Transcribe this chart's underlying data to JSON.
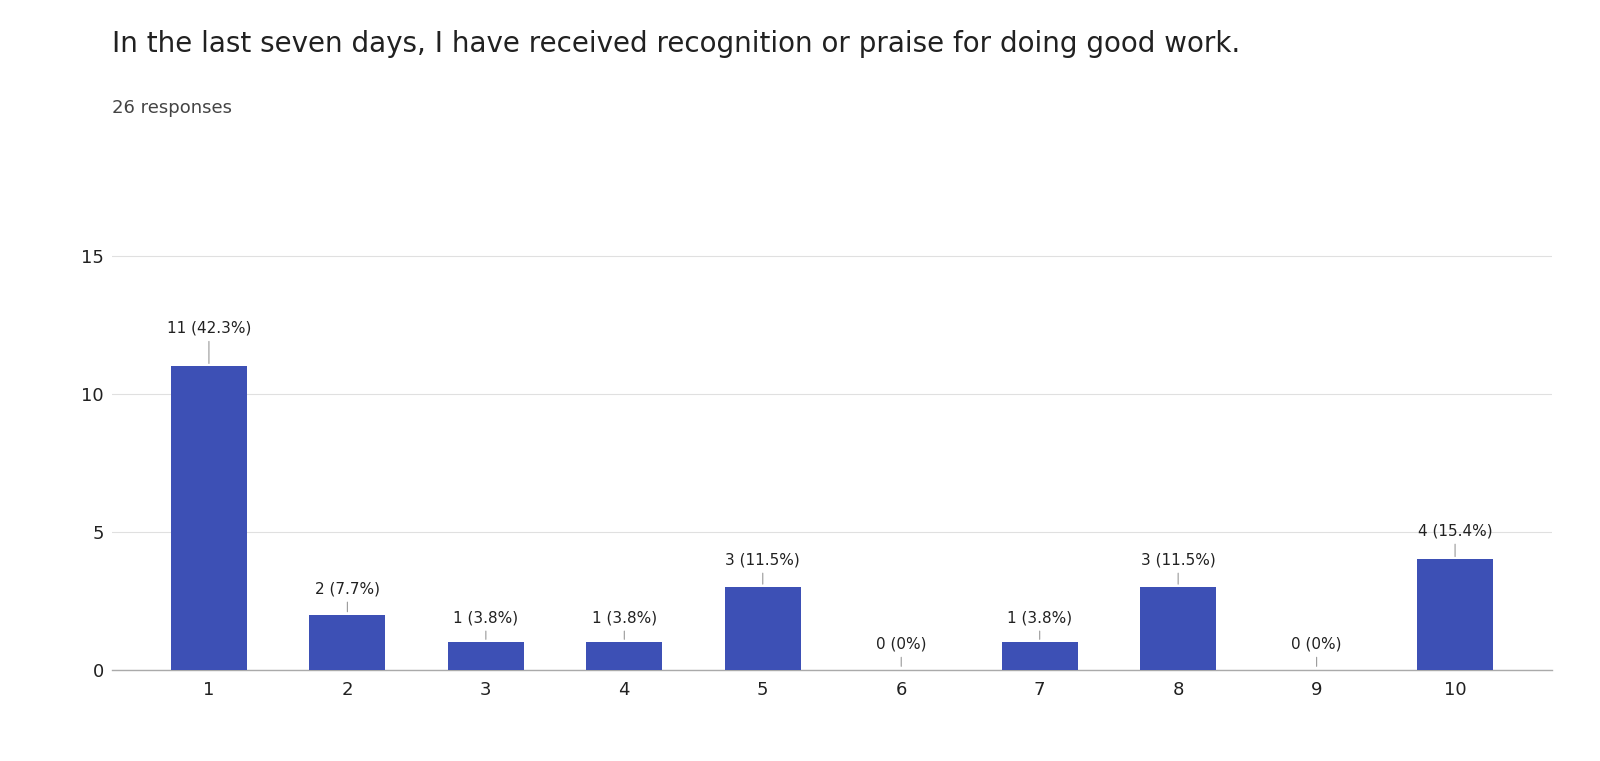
{
  "title": "In the last seven days, I have received recognition or praise for doing good work.",
  "subtitle": "26 responses",
  "categories": [
    1,
    2,
    3,
    4,
    5,
    6,
    7,
    8,
    9,
    10
  ],
  "values": [
    11,
    2,
    1,
    1,
    3,
    0,
    1,
    3,
    0,
    4
  ],
  "labels": [
    "11 (42.3%)",
    "2 (7.7%)",
    "1 (3.8%)",
    "1 (3.8%)",
    "3 (11.5%)",
    "0 (0%)",
    "1 (3.8%)",
    "3 (11.5%)",
    "0 (0%)",
    "4 (15.4%)"
  ],
  "bar_color": "#3d50b5",
  "background_color": "#ffffff",
  "ylim": [
    0,
    16
  ],
  "yticks": [
    0,
    5,
    10,
    15
  ],
  "title_fontsize": 20,
  "subtitle_fontsize": 13,
  "label_fontsize": 11,
  "tick_fontsize": 13,
  "grid_color": "#e0e0e0",
  "text_color": "#212121",
  "subtitle_color": "#444444"
}
